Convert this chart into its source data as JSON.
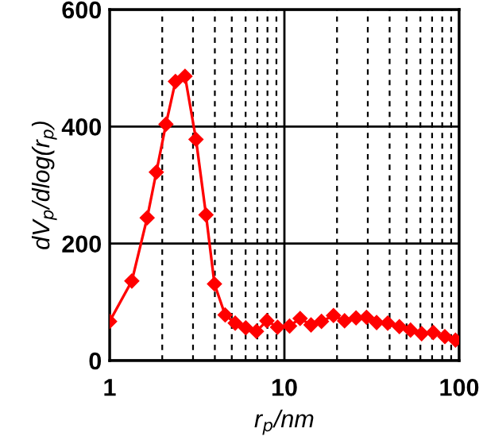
{
  "chart_data": {
    "type": "line",
    "xlabel": "r$_{p}$/nm",
    "ylabel": "dV$_{p}$/dlog(r$_{p}$)",
    "log": "x",
    "xlim": [
      1,
      100
    ],
    "xticks": [
      1,
      10,
      100
    ],
    "ylim": [
      0,
      600
    ],
    "yticks": [
      0,
      200,
      400,
      600
    ],
    "grid": true,
    "marker": "diamond",
    "line_style": "solid",
    "series": [
      {
        "color": "#ff0000",
        "x": [
          1,
          1.34,
          1.64,
          1.85,
          2.1,
          2.38,
          2.7,
          3.12,
          3.56,
          3.98,
          4.58,
          5.23,
          6.01,
          6.92,
          7.94,
          9.14,
          10.7,
          12.3,
          14.2,
          16.3,
          19.1,
          22.1,
          25.7,
          29.5,
          33.7,
          39.0,
          45.5,
          52.7,
          61,
          71.1,
          82.8,
          95.3
        ],
        "values": [
          67,
          136,
          244,
          322,
          404,
          477,
          486,
          378,
          249,
          131,
          78,
          64,
          56,
          50,
          68,
          57,
          59,
          72,
          61,
          67,
          77,
          68,
          73,
          74,
          65,
          64,
          58,
          52,
          46,
          48,
          41,
          35
        ]
      }
    ]
  }
}
